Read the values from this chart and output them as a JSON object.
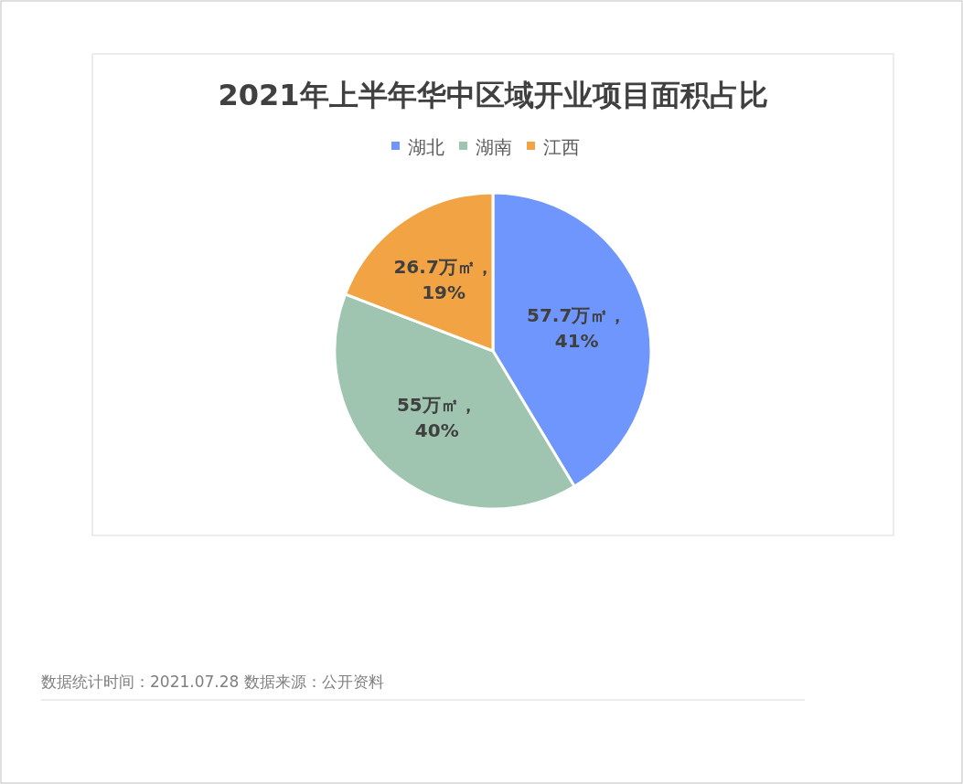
{
  "chart_data": {
    "type": "pie",
    "title": "2021年上半年华中区域开业项目面积占比",
    "categories": [
      "湖北",
      "湖南",
      "江西"
    ],
    "values": [
      57.7,
      55,
      26.7
    ],
    "colors": [
      "#6f96fc",
      "#9fc5b1",
      "#f2a444"
    ],
    "value_labels": [
      "57.7万㎡，\n41%",
      "55万㎡，\n40%",
      "26.7万㎡，\n19%"
    ],
    "legend": "top",
    "annotations": [
      "数据统计时间：2021.07.28  数据来源：公开资料"
    ]
  }
}
